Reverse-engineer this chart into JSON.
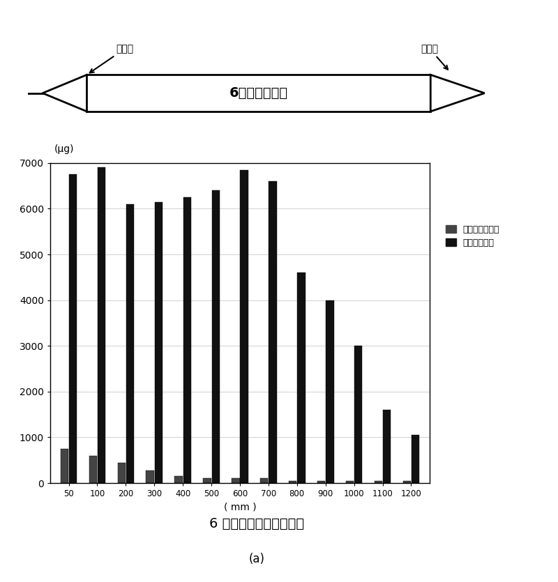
{
  "categories": [
    50,
    100,
    200,
    300,
    400,
    500,
    600,
    700,
    800,
    900,
    1000,
    1100,
    1200
  ],
  "conventional_values": [
    750,
    600,
    450,
    280,
    150,
    100,
    100,
    100,
    50,
    50,
    50,
    50,
    50
  ],
  "invention_values": [
    6750,
    6900,
    6100,
    6150,
    6250,
    6400,
    6850,
    6600,
    4600,
    4000,
    3000,
    1600,
    1050
  ],
  "ylabel": "(μg)",
  "xlabel": "( mm )",
  "ylim": [
    0,
    7000
  ],
  "yticks": [
    0,
    1000,
    2000,
    3000,
    4000,
    5000,
    6000,
    7000
  ],
  "title": "6 英寸整根单晶表皮寿命",
  "subtitle": "(a)",
  "bar_color_conventional": "#111111",
  "bar_color_invention": "#111111",
  "legend_label_1": "常规工艺寿命値",
  "legend_label_2": "本发明寿命値",
  "crystal_label": "6英寸单晶硅棒",
  "head_label": "单晶头",
  "tail_label": "单晶尾",
  "bar_width": 0.28,
  "conv_color": "#555555",
  "inv_color": "#111111"
}
